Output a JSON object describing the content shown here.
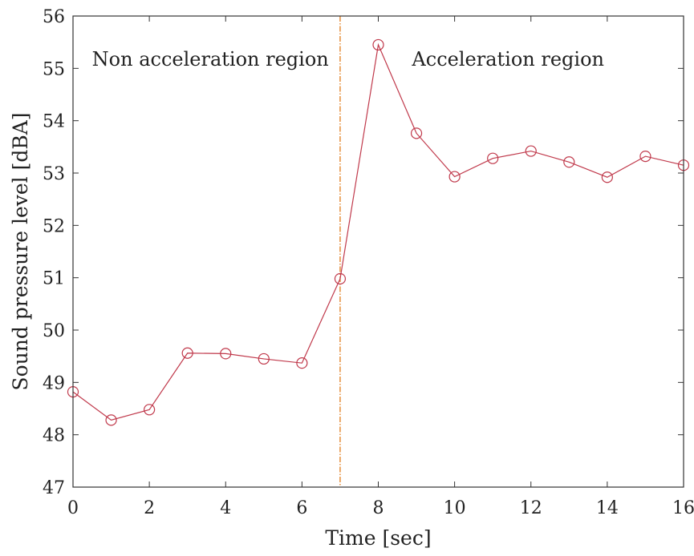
{
  "chart_data": {
    "type": "line",
    "title": "",
    "xlabel": "Time [sec]",
    "ylabel": "Sound pressure level [dBA]",
    "xlim": [
      0,
      16
    ],
    "ylim": [
      47,
      56
    ],
    "xticks": [
      0,
      2,
      4,
      6,
      8,
      10,
      12,
      14,
      16
    ],
    "yticks": [
      47,
      48,
      49,
      50,
      51,
      52,
      53,
      54,
      55,
      56
    ],
    "grid": false,
    "series": [
      {
        "name": "Sound pressure level",
        "color": "#c0394b",
        "marker": "circle-open",
        "x": [
          0,
          1,
          2,
          3,
          4,
          5,
          6,
          7,
          8,
          9,
          10,
          11,
          12,
          13,
          14,
          15,
          16
        ],
        "values": [
          48.82,
          48.28,
          48.48,
          49.56,
          49.55,
          49.45,
          49.37,
          50.98,
          55.45,
          53.76,
          52.93,
          53.28,
          53.42,
          53.21,
          52.92,
          53.32,
          53.15
        ]
      }
    ],
    "reference_line": {
      "x": 7,
      "color": "#e07b1a",
      "style": "dash-dot"
    },
    "annotations": [
      {
        "text": "Non acceleration region",
        "x": 3.6,
        "y": 55.05,
        "anchor": "middle"
      },
      {
        "text": "Acceleration region",
        "x": 11.4,
        "y": 55.05,
        "anchor": "middle"
      }
    ],
    "axis_color": "#333333"
  }
}
